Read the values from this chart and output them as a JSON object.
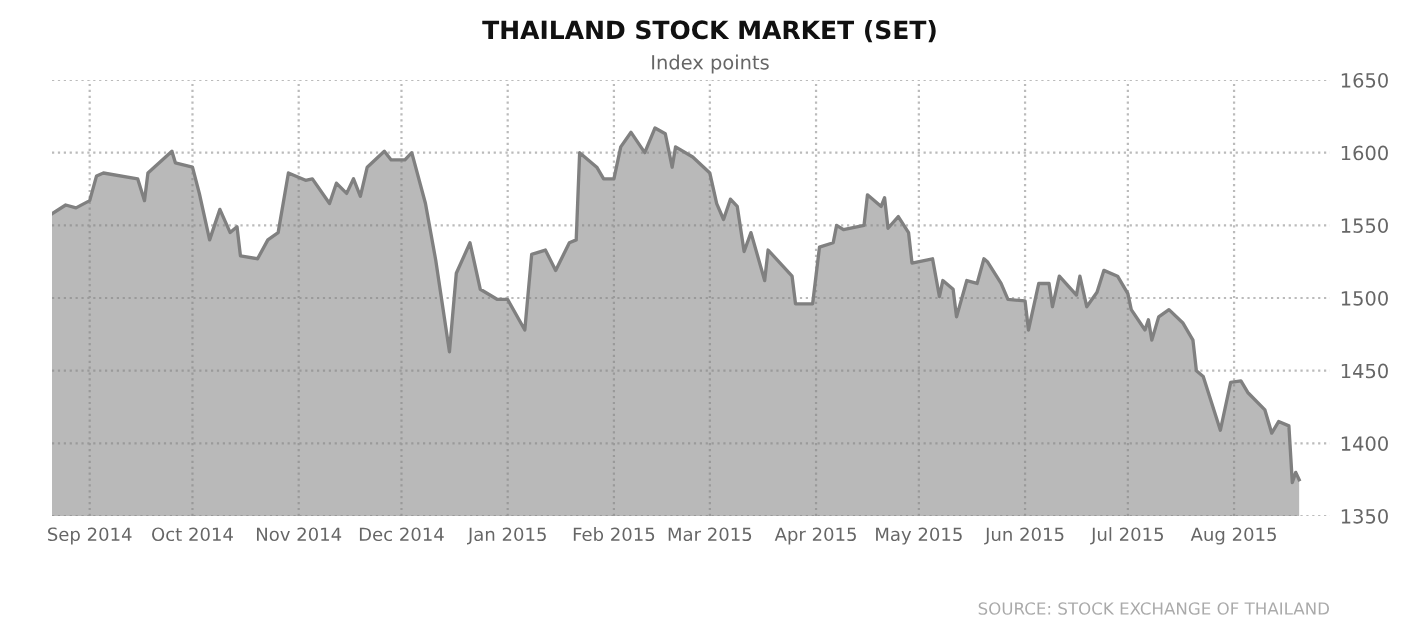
{
  "chart_data": {
    "type": "area",
    "title": "THAILAND STOCK MARKET (SET)",
    "subtitle": "Index points",
    "annotations": [
      "SOURCE: STOCK EXCHANGE OF THAILAND"
    ],
    "x": [
      "2014-08-21",
      "2014-08-25",
      "2014-08-28",
      "2014-09-01",
      "2014-09-03",
      "2014-09-05",
      "2014-09-15",
      "2014-09-17",
      "2014-09-18",
      "2014-09-25",
      "2014-09-26",
      "2014-10-01",
      "2014-10-03",
      "2014-10-06",
      "2014-10-09",
      "2014-10-12",
      "2014-10-14",
      "2014-10-15",
      "2014-10-20",
      "2014-10-23",
      "2014-10-26",
      "2014-10-29",
      "2014-11-03",
      "2014-11-05",
      "2014-11-10",
      "2014-11-12",
      "2014-11-15",
      "2014-11-17",
      "2014-11-19",
      "2014-11-21",
      "2014-11-26",
      "2014-11-28",
      "2014-12-02",
      "2014-12-04",
      "2014-12-08",
      "2014-12-11",
      "2014-12-15",
      "2014-12-17",
      "2014-12-21",
      "2014-12-24",
      "2014-12-29",
      "2015-01-01",
      "2015-01-06",
      "2015-01-08",
      "2015-01-12",
      "2015-01-15",
      "2015-01-19",
      "2015-01-21",
      "2015-01-22",
      "2015-01-27",
      "2015-01-29",
      "2015-02-01",
      "2015-02-03",
      "2015-02-06",
      "2015-02-10",
      "2015-02-13",
      "2015-02-16",
      "2015-02-18",
      "2015-02-19",
      "2015-02-24",
      "2015-03-01",
      "2015-03-03",
      "2015-03-05",
      "2015-03-07",
      "2015-03-09",
      "2015-03-11",
      "2015-03-13",
      "2015-03-17",
      "2015-03-18",
      "2015-03-25",
      "2015-03-26",
      "2015-03-31",
      "2015-04-02",
      "2015-04-06",
      "2015-04-07",
      "2015-04-09",
      "2015-04-15",
      "2015-04-16",
      "2015-04-20",
      "2015-04-21",
      "2015-04-22",
      "2015-04-25",
      "2015-04-28",
      "2015-04-29",
      "2015-05-05",
      "2015-05-07",
      "2015-05-08",
      "2015-05-11",
      "2015-05-12",
      "2015-05-15",
      "2015-05-18",
      "2015-05-20",
      "2015-05-21",
      "2015-05-25",
      "2015-05-27",
      "2015-06-01",
      "2015-06-02",
      "2015-06-05",
      "2015-06-08",
      "2015-06-09",
      "2015-06-11",
      "2015-06-16",
      "2015-06-17",
      "2015-06-19",
      "2015-06-22",
      "2015-06-24",
      "2015-06-28",
      "2015-07-01",
      "2015-07-02",
      "2015-07-06",
      "2015-07-07",
      "2015-07-08",
      "2015-07-10",
      "2015-07-13",
      "2015-07-17",
      "2015-07-20",
      "2015-07-21",
      "2015-07-23",
      "2015-07-28",
      "2015-07-31",
      "2015-08-03",
      "2015-08-05",
      "2015-08-10",
      "2015-08-12",
      "2015-08-14",
      "2015-08-17",
      "2015-08-18",
      "2015-08-19",
      "2015-08-20"
    ],
    "series": [
      {
        "color": "#808080",
        "values": [
          1558,
          1564,
          1562,
          1567,
          1584,
          1586,
          1582,
          1567,
          1586,
          1601,
          1593,
          1590,
          1572,
          1540,
          1561,
          1545,
          1549,
          1529,
          1527,
          1540,
          1545,
          1586,
          1581,
          1582,
          1565,
          1579,
          1572,
          1582,
          1570,
          1590,
          1601,
          1595,
          1595,
          1600,
          1565,
          1526,
          1463,
          1517,
          1538,
          1506,
          1499,
          1499,
          1478,
          1530,
          1533,
          1519,
          1538,
          1540,
          1600,
          1590,
          1582,
          1582,
          1604,
          1614,
          1600,
          1617,
          1613,
          1590,
          1604,
          1597,
          1586,
          1565,
          1554,
          1568,
          1563,
          1532,
          1545,
          1512,
          1533,
          1515,
          1496,
          1496,
          1535,
          1538,
          1550,
          1547,
          1550,
          1571,
          1563,
          1569,
          1548,
          1556,
          1545,
          1524,
          1527,
          1501,
          1512,
          1506,
          1487,
          1512,
          1510,
          1527,
          1525,
          1510,
          1499,
          1498,
          1478,
          1510,
          1510,
          1494,
          1515,
          1502,
          1515,
          1494,
          1504,
          1519,
          1515,
          1503,
          1492,
          1478,
          1485,
          1471,
          1487,
          1492,
          1483,
          1471,
          1450,
          1446,
          1409,
          1442,
          1443,
          1435,
          1423,
          1407,
          1415,
          1412,
          1373,
          1380,
          1375
        ]
      }
    ],
    "xlim": [
      "2014-08-21",
      "2015-08-29"
    ],
    "xticks": [
      {
        "value": "2014-09-01",
        "label": "Sep 2014"
      },
      {
        "value": "2014-10-01",
        "label": "Oct 2014"
      },
      {
        "value": "2014-11-01",
        "label": "Nov 2014"
      },
      {
        "value": "2014-12-01",
        "label": "Dec 2014"
      },
      {
        "value": "2015-01-01",
        "label": "Jan 2015"
      },
      {
        "value": "2015-02-01",
        "label": "Feb 2015"
      },
      {
        "value": "2015-03-01",
        "label": "Mar 2015"
      },
      {
        "value": "2015-04-01",
        "label": "Apr 2015"
      },
      {
        "value": "2015-05-01",
        "label": "May 2015"
      },
      {
        "value": "2015-06-01",
        "label": "Jun 2015"
      },
      {
        "value": "2015-07-01",
        "label": "Jul 2015"
      },
      {
        "value": "2015-08-01",
        "label": "Aug 2015"
      }
    ],
    "ylim": [
      1350,
      1650
    ],
    "yticks": [
      1350,
      1400,
      1450,
      1500,
      1550,
      1600,
      1650
    ],
    "grid": true,
    "marker": "none",
    "line_style": "solid"
  }
}
